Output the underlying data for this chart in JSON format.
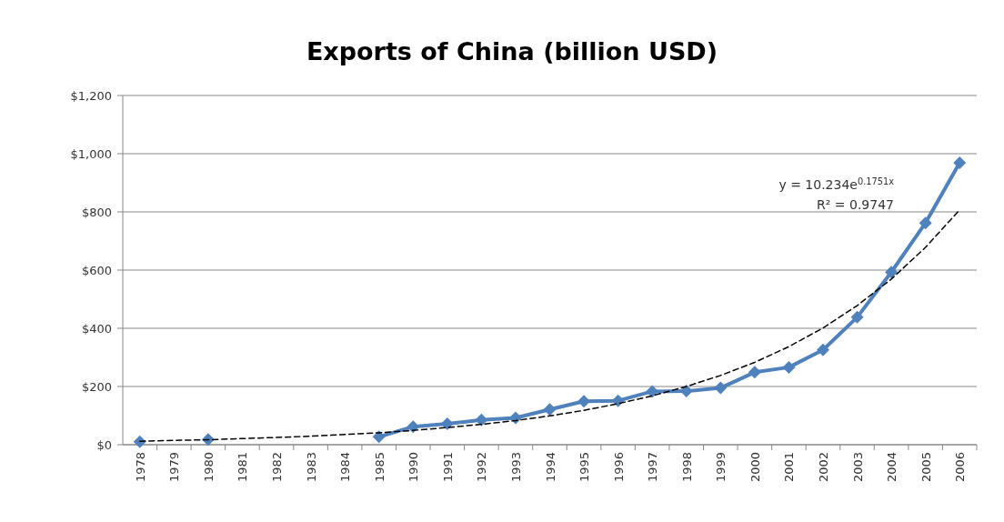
{
  "chart_data": {
    "type": "line",
    "title": "Exports of China (billion USD)",
    "categories": [
      "1978",
      "1979",
      "1980",
      "1981",
      "1982",
      "1983",
      "1984",
      "1985",
      "1990",
      "1991",
      "1992",
      "1993",
      "1994",
      "1995",
      "1996",
      "1997",
      "1998",
      "1999",
      "2000",
      "2001",
      "2002",
      "2003",
      "2004",
      "2005",
      "2006"
    ],
    "series": [
      {
        "color": "#4f81bd",
        "marker": "diamond",
        "line_style": "solid",
        "values": [
          10,
          null,
          18,
          null,
          null,
          null,
          null,
          27,
          62,
          72,
          85,
          92,
          121,
          149,
          151,
          183,
          184,
          195,
          249,
          266,
          326,
          438,
          593,
          762,
          969
        ]
      },
      {
        "color": "#000000",
        "marker": "none",
        "line_style": "dashed",
        "values": [
          12,
          15,
          17,
          21,
          25,
          29,
          35,
          41,
          49,
          59,
          70,
          83,
          99,
          118,
          141,
          168,
          200,
          238,
          283,
          337,
          401,
          478,
          569,
          678,
          807
        ]
      }
    ],
    "ylim": [
      0,
      1200
    ],
    "yticks": [
      {
        "value": 0,
        "label": "$0"
      },
      {
        "value": 200,
        "label": "$200"
      },
      {
        "value": 400,
        "label": "$400"
      },
      {
        "value": 600,
        "label": "$600"
      },
      {
        "value": 800,
        "label": "$800"
      },
      {
        "value": 1000,
        "label": "$1,000"
      },
      {
        "value": 1200,
        "label": "$1,200"
      }
    ],
    "grid": "y",
    "annotations": [
      "y = 10.234e$^{0.1751x}$",
      "R² = 0.9747"
    ]
  }
}
